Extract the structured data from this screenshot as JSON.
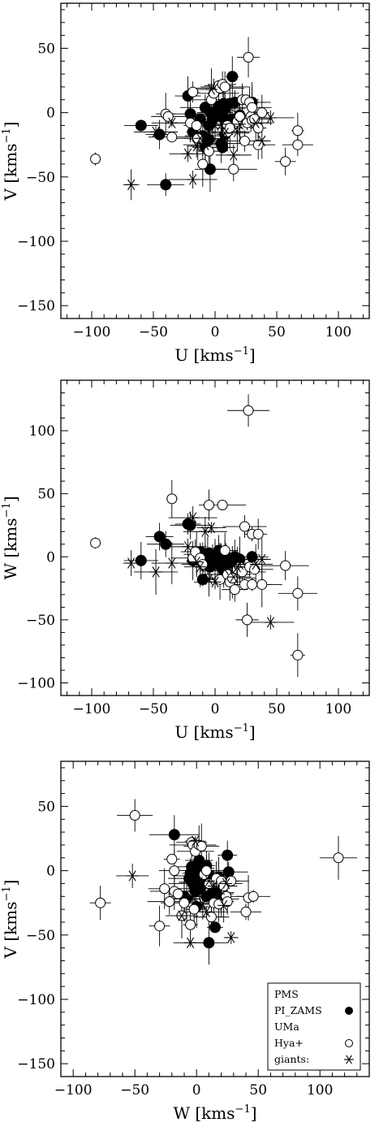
{
  "chart_data": [
    {
      "type": "scatter",
      "xlabel": "U  [kms",
      "xlabel_sup": "−1",
      "xlabel_end": "]",
      "ylabel": "V  [kms",
      "ylabel_sup": "−1",
      "ylabel_end": "]",
      "xlim": [
        -125,
        125
      ],
      "ylim": [
        -160,
        85
      ],
      "xticks": [
        -100,
        -50,
        0,
        50,
        100
      ],
      "yticks": [
        -150,
        -100,
        -50,
        0,
        50
      ],
      "grid": false,
      "series": [
        {
          "key": "pms",
          "marker": "filled-circle",
          "points": [
            [
              -60,
              -10
            ],
            [
              -45,
              -17
            ],
            [
              -40,
              -56
            ],
            [
              -22,
              13
            ],
            [
              -20,
              -1
            ],
            [
              -18,
              -15
            ],
            [
              -12,
              -5
            ],
            [
              -10,
              -18
            ],
            [
              -8,
              4
            ],
            [
              -8,
              -27
            ],
            [
              -5,
              -21
            ],
            [
              -5,
              -10
            ],
            [
              -4,
              -44
            ],
            [
              -3,
              -1
            ],
            [
              -2,
              -5
            ],
            [
              0,
              0
            ],
            [
              0,
              -2
            ],
            [
              2,
              2
            ],
            [
              3,
              5
            ],
            [
              5,
              -3
            ],
            [
              5,
              -24
            ],
            [
              6,
              -27
            ],
            [
              6,
              1
            ],
            [
              7,
              7
            ],
            [
              8,
              3
            ],
            [
              8,
              -17
            ],
            [
              10,
              -6
            ],
            [
              10,
              -12
            ],
            [
              12,
              7
            ],
            [
              14,
              28
            ],
            [
              14,
              -5
            ],
            [
              16,
              8
            ],
            [
              20,
              -2
            ],
            [
              30,
              8
            ]
          ]
        },
        {
          "key": "uma",
          "marker": "open-circle",
          "points": [
            [
              -97,
              -36
            ],
            [
              -40,
              -1
            ],
            [
              -38,
              -3
            ],
            [
              -35,
              -19
            ],
            [
              -20,
              -8
            ],
            [
              -18,
              16
            ],
            [
              -15,
              -10
            ],
            [
              -14,
              -20
            ],
            [
              -10,
              -40
            ],
            [
              -5,
              -30
            ],
            [
              -3,
              10
            ],
            [
              -1,
              15
            ],
            [
              3,
              21
            ],
            [
              4,
              19
            ],
            [
              6,
              22
            ],
            [
              8,
              20
            ],
            [
              10,
              -10
            ],
            [
              10,
              -15
            ],
            [
              12,
              -12
            ],
            [
              15,
              -44
            ],
            [
              18,
              -7
            ],
            [
              20,
              -3
            ],
            [
              22,
              10
            ],
            [
              24,
              -22
            ],
            [
              25,
              10
            ],
            [
              26,
              -8
            ],
            [
              27,
              43
            ],
            [
              28,
              8
            ],
            [
              29,
              -3
            ],
            [
              30,
              4
            ],
            [
              30,
              -6
            ],
            [
              32,
              -5
            ],
            [
              35,
              -12
            ],
            [
              35,
              -25
            ],
            [
              38,
              0
            ],
            [
              57,
              -38
            ],
            [
              67,
              -14
            ],
            [
              67,
              -25
            ]
          ]
        },
        {
          "key": "giants",
          "marker": "star",
          "points": [
            [
              -68,
              -56
            ],
            [
              -48,
              -15
            ],
            [
              -35,
              -8
            ],
            [
              -22,
              -32
            ],
            [
              -18,
              -52
            ],
            [
              -15,
              -26
            ],
            [
              -12,
              -20
            ],
            [
              -8,
              -25
            ],
            [
              -5,
              -15
            ],
            [
              -3,
              18
            ],
            [
              0,
              -10
            ],
            [
              5,
              -9
            ],
            [
              8,
              -16
            ],
            [
              15,
              -33
            ],
            [
              18,
              -15
            ],
            [
              20,
              -9
            ],
            [
              33,
              -8
            ],
            [
              38,
              -22
            ],
            [
              45,
              -4
            ]
          ]
        }
      ]
    },
    {
      "type": "scatter",
      "xlabel": "U  [kms",
      "xlabel_sup": "−1",
      "xlabel_end": "]",
      "ylabel": "W  [kms",
      "ylabel_sup": "−1",
      "ylabel_end": "]",
      "xlim": [
        -125,
        125
      ],
      "ylim": [
        -110,
        140
      ],
      "xticks": [
        -100,
        -50,
        0,
        50,
        100
      ],
      "yticks": [
        -100,
        -50,
        0,
        50,
        100
      ],
      "grid": false,
      "series": [
        {
          "key": "pms",
          "marker": "filled-circle",
          "points": [
            [
              -60,
              -3
            ],
            [
              -45,
              16
            ],
            [
              -40,
              10
            ],
            [
              -22,
              26
            ],
            [
              -20,
              25
            ],
            [
              -18,
              -3
            ],
            [
              -15,
              2
            ],
            [
              -12,
              4
            ],
            [
              -10,
              -18
            ],
            [
              -8,
              -2
            ],
            [
              -6,
              1
            ],
            [
              -5,
              3
            ],
            [
              -4,
              -8
            ],
            [
              -2,
              1
            ],
            [
              0,
              0
            ],
            [
              0,
              -2
            ],
            [
              1,
              2
            ],
            [
              2,
              -5
            ],
            [
              3,
              5
            ],
            [
              4,
              -3
            ],
            [
              5,
              -8
            ],
            [
              6,
              -1
            ],
            [
              7,
              -11
            ],
            [
              8,
              2
            ],
            [
              9,
              -6
            ],
            [
              10,
              -14
            ],
            [
              11,
              -2
            ],
            [
              12,
              -18
            ],
            [
              14,
              -5
            ],
            [
              16,
              0
            ],
            [
              20,
              -2
            ],
            [
              30,
              0
            ]
          ]
        },
        {
          "key": "uma",
          "marker": "open-circle",
          "points": [
            [
              -97,
              11
            ],
            [
              -35,
              46
            ],
            [
              -18,
              -1
            ],
            [
              -16,
              4
            ],
            [
              -12,
              -1
            ],
            [
              -10,
              -6
            ],
            [
              -5,
              41
            ],
            [
              4,
              -18
            ],
            [
              6,
              41
            ],
            [
              8,
              5
            ],
            [
              10,
              -14
            ],
            [
              12,
              -20
            ],
            [
              14,
              -17
            ],
            [
              16,
              -26
            ],
            [
              18,
              -10
            ],
            [
              20,
              -8
            ],
            [
              22,
              -12
            ],
            [
              24,
              -22
            ],
            [
              24,
              24
            ],
            [
              26,
              -50
            ],
            [
              27,
              116
            ],
            [
              28,
              -8
            ],
            [
              30,
              -22
            ],
            [
              30,
              18
            ],
            [
              32,
              -10
            ],
            [
              35,
              18
            ],
            [
              38,
              -22
            ],
            [
              57,
              -7
            ],
            [
              67,
              -29
            ],
            [
              67,
              -78
            ]
          ]
        },
        {
          "key": "giants",
          "marker": "star",
          "points": [
            [
              -68,
              -5
            ],
            [
              -48,
              -12
            ],
            [
              -35,
              -5
            ],
            [
              -22,
              8
            ],
            [
              -18,
              31
            ],
            [
              -15,
              -4
            ],
            [
              -12,
              -8
            ],
            [
              -8,
              20
            ],
            [
              -5,
              -18
            ],
            [
              -3,
              23
            ],
            [
              0,
              -20
            ],
            [
              5,
              -3
            ],
            [
              8,
              -10
            ],
            [
              15,
              -16
            ],
            [
              18,
              -8
            ],
            [
              20,
              -6
            ],
            [
              33,
              -6
            ],
            [
              38,
              -2
            ],
            [
              45,
              -52
            ]
          ]
        }
      ]
    },
    {
      "type": "scatter",
      "xlabel": "W  [kms",
      "xlabel_sup": "−1",
      "xlabel_end": "]",
      "ylabel": "V  [kms",
      "ylabel_sup": "−1",
      "ylabel_end": "]",
      "xlim": [
        -110,
        140
      ],
      "ylim": [
        -160,
        85
      ],
      "xticks": [
        -100,
        -50,
        0,
        50,
        100
      ],
      "yticks": [
        -150,
        -100,
        -50,
        0,
        50
      ],
      "grid": false,
      "legend_position": "bottom-right",
      "legend": [
        {
          "key": "pms",
          "label": "PMS",
          "marker": "none"
        },
        {
          "key": "pms",
          "label": "PI_ZAMS",
          "marker": "filled-circle"
        },
        {
          "key": "uma",
          "label": "UMa",
          "marker": "none"
        },
        {
          "key": "uma",
          "label": "Hya+",
          "marker": "open-circle"
        },
        {
          "key": "giants",
          "label": "giants:",
          "marker": "star"
        }
      ],
      "series": [
        {
          "key": "pms",
          "marker": "filled-circle",
          "points": [
            [
              -18,
              28
            ],
            [
              -10,
              -20
            ],
            [
              -8,
              -22
            ],
            [
              -6,
              -6
            ],
            [
              -5,
              -2
            ],
            [
              -4,
              3
            ],
            [
              -3,
              -10
            ],
            [
              -2,
              0
            ],
            [
              -1,
              -16
            ],
            [
              0,
              4
            ],
            [
              0,
              -28
            ],
            [
              1,
              -4
            ],
            [
              2,
              8
            ],
            [
              3,
              -14
            ],
            [
              4,
              -2
            ],
            [
              5,
              -9
            ],
            [
              6,
              2
            ],
            [
              8,
              -20
            ],
            [
              8,
              4
            ],
            [
              10,
              -56
            ],
            [
              10,
              -3
            ],
            [
              12,
              -18
            ],
            [
              15,
              -44
            ],
            [
              16,
              -17
            ],
            [
              18,
              -5
            ],
            [
              20,
              -22
            ],
            [
              25,
              12
            ],
            [
              26,
              -1
            ]
          ]
        },
        {
          "key": "uma",
          "marker": "open-circle",
          "points": [
            [
              -78,
              -25
            ],
            [
              -50,
              43
            ],
            [
              -30,
              -43
            ],
            [
              -26,
              -14
            ],
            [
              -22,
              -24
            ],
            [
              -20,
              9
            ],
            [
              -18,
              0
            ],
            [
              -18,
              -16
            ],
            [
              -15,
              -18
            ],
            [
              -12,
              -35
            ],
            [
              -10,
              -25
            ],
            [
              -5,
              -42
            ],
            [
              -4,
              22
            ],
            [
              -3,
              20
            ],
            [
              -2,
              -30
            ],
            [
              -1,
              15
            ],
            [
              2,
              20
            ],
            [
              4,
              19
            ],
            [
              6,
              -3
            ],
            [
              8,
              0
            ],
            [
              10,
              -10
            ],
            [
              12,
              -36
            ],
            [
              14,
              -25
            ],
            [
              16,
              -6
            ],
            [
              18,
              -26
            ],
            [
              20,
              -8
            ],
            [
              22,
              -12
            ],
            [
              24,
              -20
            ],
            [
              25,
              -24
            ],
            [
              28,
              -8
            ],
            [
              40,
              -32
            ],
            [
              42,
              -21
            ],
            [
              46,
              -20
            ],
            [
              115,
              10
            ]
          ]
        },
        {
          "key": "giants",
          "marker": "star",
          "points": [
            [
              -52,
              -4
            ],
            [
              -12,
              -35
            ],
            [
              -5,
              -56
            ],
            [
              -3,
              -20
            ],
            [
              -1,
              23
            ],
            [
              2,
              -9
            ],
            [
              5,
              -26
            ],
            [
              8,
              -32
            ],
            [
              10,
              -8
            ],
            [
              14,
              -12
            ],
            [
              18,
              -18
            ],
            [
              22,
              -27
            ],
            [
              24,
              -10
            ],
            [
              28,
              -52
            ]
          ]
        }
      ]
    }
  ]
}
